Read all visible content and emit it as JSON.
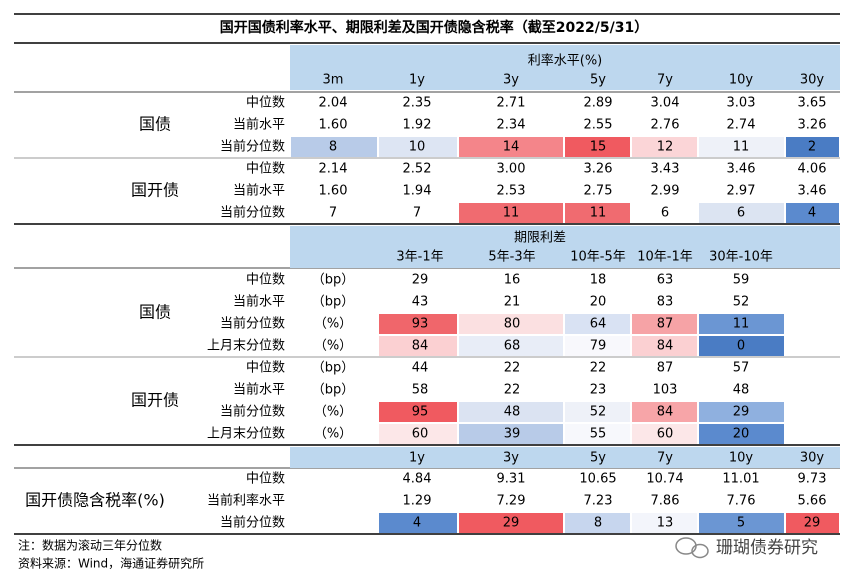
{
  "title": "国开国债利率水平、期限利差及国开债隐含税率（截至2022/5/31）",
  "rate_table": {
    "header": "利率水平(%)",
    "columns": [
      "3m",
      "1y",
      "3y",
      "5y",
      "7y",
      "10y",
      "30y"
    ],
    "groups": [
      {
        "name": "国债",
        "rows": [
          {
            "label": "中位数",
            "values": [
              "2.04",
              "2.35",
              "2.71",
              "2.89",
              "3.04",
              "3.03",
              "3.65"
            ]
          },
          {
            "label": "当前水平",
            "values": [
              "1.60",
              "1.92",
              "2.34",
              "2.55",
              "2.76",
              "2.74",
              "3.26"
            ]
          },
          {
            "label": "当前分位数",
            "values": [
              "8",
              "10",
              "14",
              "15",
              "12",
              "11",
              "2"
            ],
            "colors": [
              "#b8cbe8",
              "#dde5f3",
              "#f4858a",
              "#f05a60",
              "#fbd5d7",
              "#eef1f8",
              "#4a7cc4"
            ]
          }
        ]
      },
      {
        "name": "国开债",
        "rows": [
          {
            "label": "中位数",
            "values": [
              "2.14",
              "2.52",
              "3.00",
              "3.26",
              "3.43",
              "3.46",
              "4.06"
            ]
          },
          {
            "label": "当前水平",
            "values": [
              "1.60",
              "1.94",
              "2.53",
              "2.75",
              "2.99",
              "2.97",
              "3.46"
            ]
          },
          {
            "label": "当前分位数",
            "values": [
              "7",
              "7",
              "11",
              "11",
              "6",
              "6",
              "4"
            ],
            "colors": [
              "#ffffff",
              "#ffffff",
              "#f06b70",
              "#f06b70",
              "#ffffff",
              "#dce4f2",
              "#5b8ace"
            ]
          }
        ]
      }
    ]
  },
  "spread_table": {
    "header": "期限利差",
    "columns": [
      "3年-1年",
      "5年-3年",
      "10年-5年",
      "10年-1年",
      "30年-10年"
    ],
    "groups": [
      {
        "name": "国债",
        "rows": [
          {
            "label": "中位数",
            "unit": "（bp）",
            "values": [
              "29",
              "16",
              "18",
              "63",
              "59"
            ]
          },
          {
            "label": "当前水平",
            "unit": "（bp）",
            "values": [
              "43",
              "21",
              "20",
              "83",
              "52"
            ]
          },
          {
            "label": "当前分位数",
            "unit": "（%）",
            "values": [
              "93",
              "80",
              "64",
              "87",
              "11"
            ],
            "colors": [
              "#f0666b",
              "#fbe0e1",
              "#d9e2f3",
              "#f6a3a6",
              "#6b96d3"
            ]
          },
          {
            "label": "上月末分位数",
            "unit": "（%）",
            "values": [
              "84",
              "68",
              "79",
              "84",
              "0"
            ],
            "colors": [
              "#fbd0d2",
              "#e8edf7",
              "#f8f8fc",
              "#fbd0d2",
              "#4a7cc4"
            ]
          }
        ]
      },
      {
        "name": "国开债",
        "rows": [
          {
            "label": "中位数",
            "unit": "（bp）",
            "values": [
              "44",
              "22",
              "22",
              "87",
              "57"
            ]
          },
          {
            "label": "当前水平",
            "unit": "（bp）",
            "values": [
              "58",
              "22",
              "23",
              "103",
              "48"
            ]
          },
          {
            "label": "当前分位数",
            "unit": "（%）",
            "values": [
              "95",
              "48",
              "52",
              "84",
              "29"
            ],
            "colors": [
              "#f05a60",
              "#dbe3f2",
              "#eef1f8",
              "#f7a5a8",
              "#8fb0df"
            ]
          },
          {
            "label": "上月末分位数",
            "unit": "（%）",
            "values": [
              "60",
              "39",
              "55",
              "60",
              "20"
            ],
            "colors": [
              "#fce7e8",
              "#b8cbe8",
              "#f7f8fc",
              "#fce7e8",
              "#5b8ace"
            ]
          }
        ]
      }
    ]
  },
  "tax_table": {
    "columns": [
      "1y",
      "3y",
      "5y",
      "7y",
      "10y",
      "30y"
    ],
    "groups": [
      {
        "name": "国开债隐含税率(%)",
        "rows": [
          {
            "label": "中位数",
            "values": [
              "4.84",
              "9.31",
              "10.65",
              "10.74",
              "11.01",
              "9.73"
            ]
          },
          {
            "label": "当前利率水平",
            "values": [
              "1.29",
              "7.29",
              "7.23",
              "7.86",
              "7.76",
              "5.66"
            ]
          },
          {
            "label": "当前分位数",
            "values": [
              "4",
              "29",
              "8",
              "13",
              "5",
              "29"
            ],
            "colors": [
              "#5b8ace",
              "#f05a60",
              "#c7d6ee",
              "#f3f5fb",
              "#6b96d3",
              "#f05a60"
            ]
          }
        ]
      }
    ]
  },
  "notes": [
    "注：数据为滚动三年分位数",
    "资料来源：Wind，海通证券研究所"
  ],
  "watermark": "珊瑚债券研究"
}
